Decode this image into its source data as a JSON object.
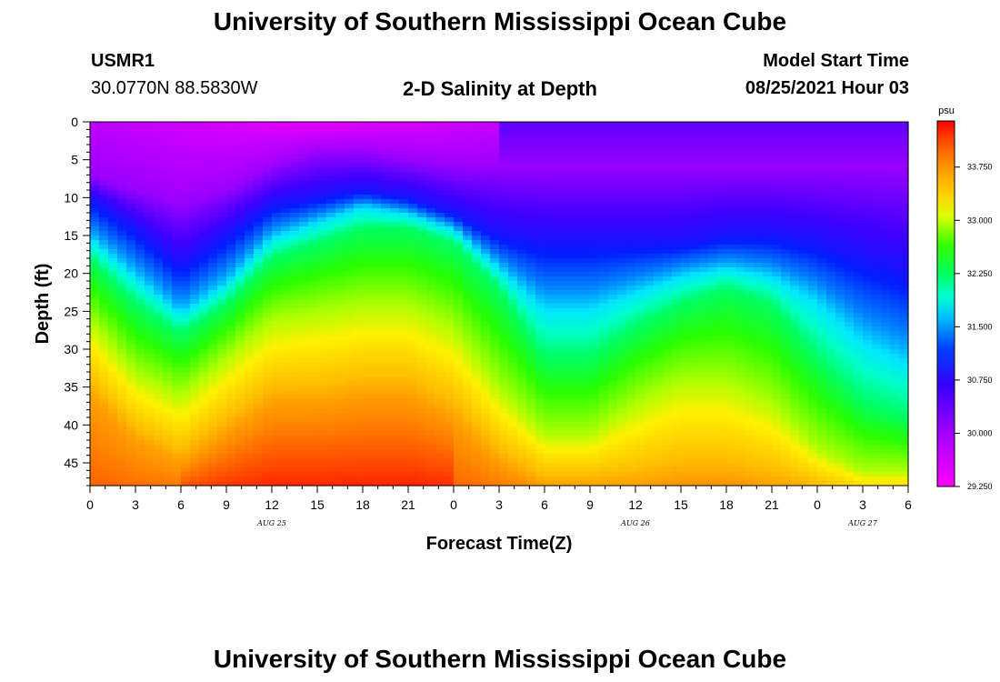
{
  "header": {
    "title_top": "University of Southern Mississippi Ocean Cube",
    "station_id": "USMR1",
    "coordinates": "30.0770N  88.5830W",
    "plot_title": "2-D Salinity at Depth",
    "model_start_label": "Model Start Time",
    "model_start_value": "08/25/2021 Hour 03",
    "title_bottom": "University of Southern Mississippi Ocean Cube"
  },
  "chart_data": {
    "type": "heatmap",
    "title": "2-D Salinity at Depth",
    "xlabel": "Forecast Time(Z)",
    "ylabel": "Depth (ft)",
    "x_range_hours": [
      0,
      54
    ],
    "y_range_ft": [
      0,
      48
    ],
    "x_tick_labels": [
      "0",
      "3",
      "6",
      "9",
      "12",
      "15",
      "18",
      "21",
      "0",
      "3",
      "6",
      "9",
      "12",
      "15",
      "18",
      "21",
      "0",
      "3",
      "6"
    ],
    "x_tick_hours": [
      0,
      3,
      6,
      9,
      12,
      15,
      18,
      21,
      24,
      27,
      30,
      33,
      36,
      39,
      42,
      45,
      48,
      51,
      54
    ],
    "date_labels": [
      {
        "text": "AUG 25",
        "hour": 12
      },
      {
        "text": "AUG 26",
        "hour": 36
      },
      {
        "text": "AUG 27",
        "hour": 51
      }
    ],
    "y_tick_labels": [
      "0",
      "5",
      "10",
      "15",
      "20",
      "25",
      "30",
      "35",
      "40",
      "45"
    ],
    "y_tick_values": [
      0,
      5,
      10,
      15,
      20,
      25,
      30,
      35,
      40,
      45
    ],
    "colorbar": {
      "unit": "psu",
      "min": 29.25,
      "max": 34.4,
      "tick_labels": [
        "33.750",
        "33.000",
        "32.250",
        "31.500",
        "30.750",
        "30.000",
        "29.250"
      ],
      "tick_values": [
        33.75,
        33.0,
        32.25,
        31.5,
        30.75,
        30.0,
        29.25
      ]
    },
    "contour_depths_ft": {
      "hours": [
        0,
        3,
        6,
        9,
        12,
        15,
        18,
        21,
        24,
        27,
        30,
        33,
        36,
        39,
        42,
        45,
        48,
        51,
        54
      ],
      "fresh_cap_30_00": [
        7,
        9,
        11,
        9,
        6,
        4,
        4,
        5,
        6,
        6,
        6,
        6,
        6,
        6,
        6,
        6,
        6,
        6,
        6
      ],
      "isohaline_30_75": [
        10,
        14,
        19,
        15,
        11,
        10,
        9,
        10,
        12,
        15,
        16,
        16,
        16,
        16,
        15,
        15,
        16,
        18,
        20
      ],
      "isohaline_31_50": [
        15,
        20,
        25,
        21,
        15,
        13,
        11,
        12,
        14,
        19,
        24,
        24,
        22,
        20,
        19,
        20,
        23,
        28,
        31
      ],
      "isohaline_32_25": [
        18,
        24,
        28,
        24,
        18,
        16,
        14,
        14,
        16,
        22,
        31,
        31,
        27,
        24,
        22,
        24,
        31,
        37,
        39
      ],
      "isohaline_33_00": [
        26,
        33,
        36,
        31,
        26,
        25,
        24,
        24,
        27,
        35,
        41,
        41,
        37,
        34,
        34,
        37,
        43,
        46,
        46
      ],
      "isohaline_33_75": [
        36,
        42,
        45,
        41,
        37,
        37,
        36,
        36,
        39,
        45,
        48,
        48,
        48,
        47,
        47,
        48,
        49,
        50,
        50
      ]
    }
  }
}
